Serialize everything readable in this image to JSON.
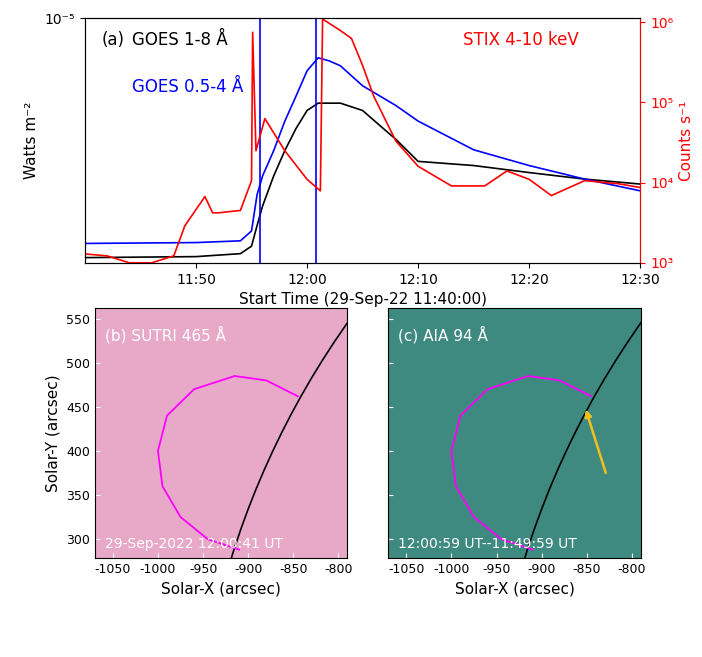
{
  "chart_data": [
    {
      "type": "line",
      "panel_label": "(a)",
      "xlabel": "Start Time (29-Sep-22 11:40:00)",
      "ylabel": "Watts m⁻²",
      "y2label": "Counts s⁻¹",
      "log": "y",
      "xlim": [
        0,
        50
      ],
      "xticks": [
        {
          "value": 10,
          "label": "11:50"
        },
        {
          "value": 20,
          "label": "12:00"
        },
        {
          "value": 30,
          "label": "12:10"
        },
        {
          "value": 40,
          "label": "12:20"
        },
        {
          "value": 50,
          "label": "12:30"
        }
      ],
      "ylim": [
        1e-06,
        1e-05
      ],
      "yticks": [
        {
          "value": 1e-05,
          "label": "10⁻⁵"
        }
      ],
      "y2lim": [
        1000,
        1120000
      ],
      "y2ticks": [
        {
          "value": 1000,
          "label": "10³"
        },
        {
          "value": 10000,
          "label": "10⁴"
        },
        {
          "value": 100000,
          "label": "10⁵"
        },
        {
          "value": 1000000,
          "label": "10⁶"
        }
      ],
      "vertical_lines": {
        "x": [
          15.8,
          20.8
        ],
        "color": "blue"
      },
      "series": [
        {
          "name": "GOES 1-8 Å",
          "color": "black",
          "x": [
            0,
            10,
            14,
            15,
            15.5,
            16,
            17,
            18,
            19,
            20,
            21,
            23,
            25,
            27,
            28,
            30,
            35,
            40,
            45,
            50
          ],
          "values": [
            1.05e-06,
            1.06e-06,
            1.09e-06,
            1.17e-06,
            1.42e-06,
            1.71e-06,
            2.27e-06,
            2.88e-06,
            3.54e-06,
            4.2e-06,
            4.5e-06,
            4.5e-06,
            4.2e-06,
            3.5e-06,
            3.2e-06,
            2.6e-06,
            2.5e-06,
            2.34e-06,
            2.2e-06,
            2.1e-06
          ]
        },
        {
          "name": "GOES 0.5-4 Å",
          "color": "blue",
          "x": [
            0,
            10,
            14,
            15,
            15.5,
            16,
            17,
            18,
            19,
            20,
            21,
            22,
            23,
            25,
            28,
            30,
            35,
            40,
            45,
            50
          ],
          "values": [
            1.2e-06,
            1.21e-06,
            1.23e-06,
            1.35e-06,
            1.9e-06,
            2.27e-06,
            2.88e-06,
            3.8e-06,
            4.8e-06,
            6.1e-06,
            6.9e-06,
            6.7e-06,
            6.4e-06,
            5.3e-06,
            4.4e-06,
            3.8e-06,
            2.9e-06,
            2.5e-06,
            2.2e-06,
            1.97e-06
          ]
        },
        {
          "name": "STIX 4-10 keV",
          "color": "red",
          "axis": "y2",
          "x": [
            0,
            2,
            4,
            6,
            8,
            9,
            10.8,
            11.5,
            12,
            14,
            15,
            15.1,
            15.4,
            16.2,
            18,
            20,
            21.2,
            21.4,
            23,
            24,
            25,
            26,
            28,
            30,
            33,
            36,
            38,
            40,
            42,
            45,
            48,
            50
          ],
          "values": [
            1290,
            1220,
            1000,
            1000,
            1220,
            2900,
            6700,
            4200,
            4200,
            4500,
            10600,
            750000,
            25000,
            63000,
            25000,
            11000,
            7900,
            1100000,
            790000,
            630000,
            290000,
            120000,
            33000,
            16000,
            9100,
            9100,
            14000,
            11000,
            6900,
            10600,
            9700,
            8700
          ]
        }
      ]
    },
    {
      "type": "image",
      "title": "(b) SUTRI 465 Å",
      "annotations": [
        "29-Sep-2022 12:00:41 UT"
      ],
      "color": "#e8a9c9",
      "xlabel": "Solar-X (arcsec)",
      "ylabel": "Solar-Y (arcsec)",
      "xlim": [
        -1070,
        -790
      ],
      "ylim": [
        278,
        562
      ],
      "xticks": [
        -1050,
        -1000,
        -950,
        -900,
        -850,
        -800
      ],
      "yticks": [
        300,
        350,
        400,
        450,
        500,
        550
      ],
      "limb": {
        "center": [
          0,
          0
        ],
        "radius": 960,
        "color": "black"
      },
      "curve": {
        "x": [
          -845,
          -880,
          -915,
          -960,
          -990,
          -1000,
          -995,
          -975,
          -945,
          -910
        ],
        "y": [
          462,
          480,
          485,
          470,
          440,
          400,
          360,
          325,
          300,
          288
        ],
        "color": "magenta"
      }
    },
    {
      "type": "image",
      "title": "(c) AIA 94 Å",
      "annotations": [
        "12:00:59 UT--11:49:59 UT"
      ],
      "color": "#3f8a80",
      "xlabel": "Solar-X (arcsec)",
      "tick_labels": "x",
      "xlim": [
        -1070,
        -790
      ],
      "ylim": [
        278,
        562
      ],
      "xticks": [
        -1050,
        -1000,
        -950,
        -900,
        -850,
        -800
      ],
      "yticks": [
        300,
        350,
        400,
        450,
        500,
        550
      ],
      "limb": {
        "center": [
          0,
          0
        ],
        "radius": 960,
        "color": "black"
      },
      "curve": {
        "x": [
          -845,
          -880,
          -915,
          -960,
          -990,
          -1000,
          -995,
          -975,
          -945,
          -910
        ],
        "y": [
          462,
          480,
          485,
          470,
          440,
          400,
          360,
          325,
          300,
          288
        ],
        "color": "magenta"
      },
      "arrow": {
        "x": [
          -828,
          -852
        ],
        "y": [
          372,
          450
        ],
        "color": "#f0c020"
      }
    }
  ]
}
